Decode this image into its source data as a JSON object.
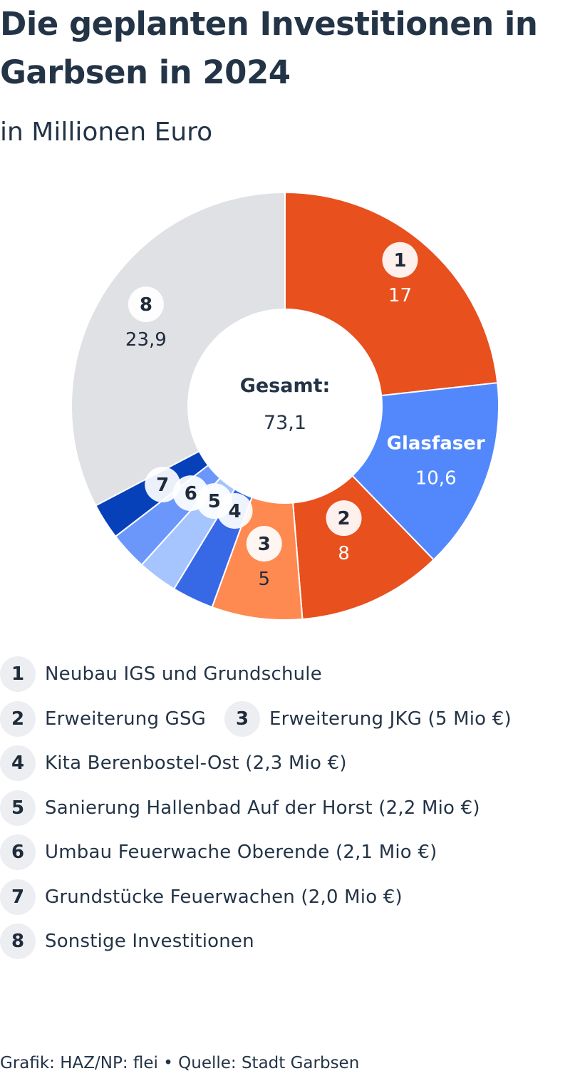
{
  "title": "Die geplanten Investitionen in Garbsen in 2024",
  "subtitle": "in Millionen Euro",
  "footer": {
    "credit": "Grafik: HAZ/NP: flei",
    "separator": "•",
    "source": "Quelle: Stadt Garbsen"
  },
  "chart_data": {
    "type": "pie",
    "variant": "donut",
    "title": "Die geplanten Investitionen in Garbsen in 2024",
    "subtitle": "in Millionen Euro",
    "center_label": "Gesamt:",
    "center_value": "73,1",
    "total": 73.1,
    "slices": [
      {
        "key": "1",
        "value": 17,
        "value_label": "17",
        "color": "#e8501e",
        "badge": true,
        "show_value": true
      },
      {
        "key": "Glasfaser",
        "value": 10.6,
        "value_label": "10,6",
        "color": "#5288fb",
        "badge": false,
        "show_value": true
      },
      {
        "key": "2",
        "value": 8,
        "value_label": "8",
        "color": "#e8501e",
        "badge": true,
        "show_value": true
      },
      {
        "key": "3",
        "value": 5,
        "value_label": "5",
        "color": "#fe8a51",
        "badge": true,
        "show_value": true
      },
      {
        "key": "4",
        "value": 2.3,
        "value_label": "2,3",
        "color": "#3768e6",
        "badge": true,
        "show_value": false
      },
      {
        "key": "5",
        "value": 2.2,
        "value_label": "2,2",
        "color": "#a6c4fd",
        "badge": true,
        "show_value": false
      },
      {
        "key": "6",
        "value": 2.1,
        "value_label": "2,1",
        "color": "#6b97fb",
        "badge": true,
        "show_value": false
      },
      {
        "key": "7",
        "value": 2.0,
        "value_label": "2,0",
        "color": "#0641b9",
        "badge": true,
        "show_value": false
      },
      {
        "key": "8",
        "value": 23.9,
        "value_label": "23,9",
        "color": "#dfe1e5",
        "badge": true,
        "show_value": true
      }
    ],
    "legend": [
      {
        "key": "1",
        "label": "Neubau IGS und Grundschule"
      },
      {
        "key": "2",
        "label": "Erweiterung GSG"
      },
      {
        "key": "3",
        "label": "Erweiterung JKG (5 Mio €)"
      },
      {
        "key": "4",
        "label": "Kita Berenbostel-Ost (2,3 Mio €)"
      },
      {
        "key": "5",
        "label": "Sanierung Hallenbad Auf der Horst (2,2 Mio €)"
      },
      {
        "key": "6",
        "label": "Umbau Feuerwache Oberende (2,1 Mio €)"
      },
      {
        "key": "7",
        "label": "Grundstücke Feuerwachen (2,0 Mio €)"
      },
      {
        "key": "8",
        "label": "Sonstige Investitionen"
      }
    ]
  }
}
